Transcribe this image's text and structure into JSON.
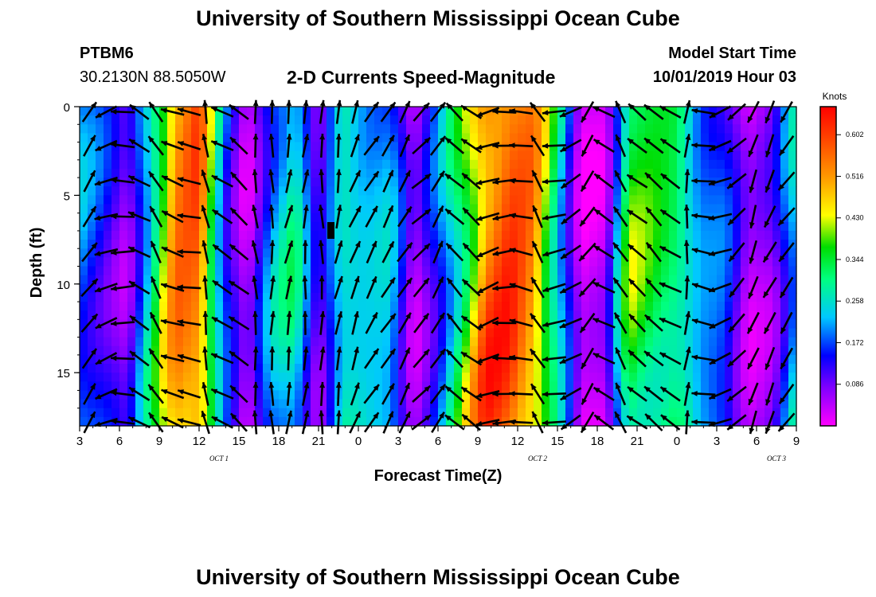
{
  "header": {
    "title": "University of Southern Mississippi Ocean Cube",
    "station_id": "PTBM6",
    "station_coords": "30.2130N 88.5050W",
    "plot_title": "2-D Currents Speed-Magnitude",
    "model_label": "Model Start Time",
    "model_time": "10/01/2019 Hour 03"
  },
  "footer": {
    "title": "University of Southern Mississippi Ocean Cube"
  },
  "chart_data": {
    "type": "heatmap",
    "title": "2-D Currents Speed-Magnitude",
    "xlabel": "Forecast Time(Z)",
    "ylabel": "Depth (ft)",
    "x_ticks": [
      "3",
      "6",
      "9",
      "12",
      "15",
      "18",
      "21",
      "0",
      "3",
      "6",
      "9",
      "12",
      "15",
      "18",
      "21",
      "0",
      "3",
      "6",
      "9"
    ],
    "x_day_labels": [
      "OCT 1",
      "OCT 2",
      "OCT 3"
    ],
    "y_ticks": [
      "0",
      "5",
      "10",
      "15"
    ],
    "ylim": [
      0,
      18
    ],
    "colorbar": {
      "title": "Knots",
      "ticks": [
        "0.602",
        "0.516",
        "0.430",
        "0.344",
        "0.258",
        "0.172",
        "0.086"
      ],
      "range": [
        0.0,
        0.66
      ]
    },
    "speed_by_time_column_knots": [
      0.21,
      0.15,
      0.07,
      0.3,
      0.56,
      0.6,
      0.2,
      0.03,
      0.22,
      0.3,
      0.08,
      0.3,
      0.25,
      0.24,
      0.04,
      0.18,
      0.38,
      0.6,
      0.63,
      0.55,
      0.3,
      0.02,
      0.04,
      0.4,
      0.37,
      0.35,
      0.22,
      0.18,
      0.04,
      0.08,
      0.28
    ],
    "arrow_directions_deg_by_column": [
      55,
      200,
      180,
      150,
      120,
      160,
      170,
      100,
      150,
      140,
      95,
      90,
      80,
      85,
      90,
      80,
      70,
      60,
      60,
      60,
      45,
      60,
      135,
      140,
      200,
      185,
      170,
      120,
      190,
      210,
      235,
      150,
      120,
      140,
      135,
      150,
      85,
      170,
      200,
      225,
      250,
      245,
      235
    ],
    "colors": {
      "magenta": "#e000e0",
      "blue": "#0000ff",
      "cyan": "#00e0ff",
      "green": "#00e000",
      "yellow": "#ffff00",
      "orange": "#ff8000",
      "red": "#ff0000"
    }
  }
}
